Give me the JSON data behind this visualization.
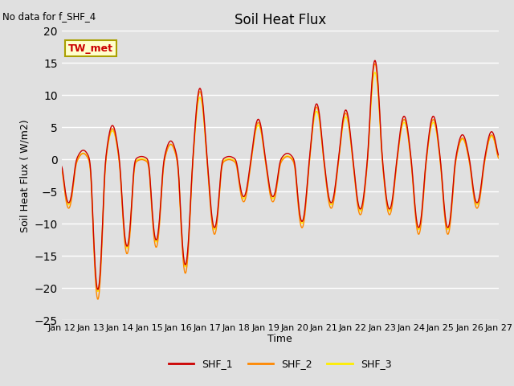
{
  "title": "Soil Heat Flux",
  "note": "No data for f_SHF_4",
  "ylabel": "Soil Heat Flux ( W/m2)",
  "xlabel": "Time",
  "legend_label": "TW_met",
  "ylim": [
    -25,
    20
  ],
  "yticks": [
    -25,
    -20,
    -15,
    -10,
    -5,
    0,
    5,
    10,
    15,
    20
  ],
  "x_tick_labels": [
    "Jan 12",
    "Jan 13",
    "Jan 14",
    "Jan 15",
    "Jan 16",
    "Jan 17",
    "Jan 18",
    "Jan 19",
    "Jan 20",
    "Jan 21",
    "Jan 22",
    "Jan 23",
    "Jan 24",
    "Jan 25",
    "Jan 26",
    "Jan 27"
  ],
  "line_colors": {
    "SHF_1": "#cc0000",
    "SHF_2": "#ff8800",
    "SHF_3": "#ffee00"
  },
  "bg_color": "#e0e0e0",
  "grid_color": "white",
  "figsize": [
    6.4,
    4.8
  ],
  "dpi": 100
}
